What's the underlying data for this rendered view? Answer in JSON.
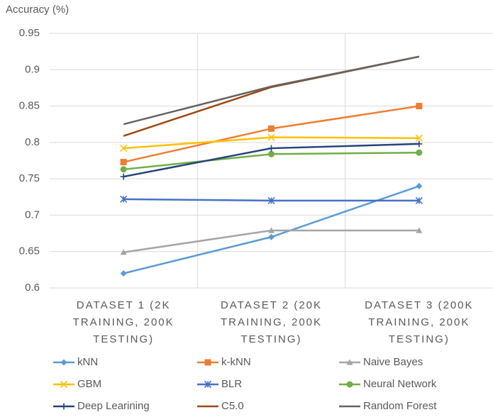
{
  "chart_data": {
    "type": "line",
    "ylabel": "Accuracy (%)",
    "categories": [
      "DATASET 1 (2K TRAINING, 200K TESTING)",
      "DATASET 2 (20K TRAINING, 200K TESTING)",
      "DATASET 3 (200K TRAINING, 200K TESTING)"
    ],
    "series": [
      {
        "name": "kNN",
        "color": "#5b9bd5",
        "marker": "diamond",
        "values": [
          0.62,
          0.67,
          0.74
        ]
      },
      {
        "name": "k-kNN",
        "color": "#ed7d31",
        "marker": "square",
        "values": [
          0.773,
          0.819,
          0.85
        ]
      },
      {
        "name": "Naive Bayes",
        "color": "#a5a5a5",
        "marker": "triangle",
        "values": [
          0.649,
          0.679,
          0.679
        ]
      },
      {
        "name": "GBM",
        "color": "#ffc000",
        "marker": "x",
        "values": [
          0.792,
          0.807,
          0.806
        ]
      },
      {
        "name": "BLR",
        "color": "#4472c4",
        "marker": "asterisk",
        "values": [
          0.722,
          0.72,
          0.72
        ]
      },
      {
        "name": "Neural Network",
        "color": "#70ad47",
        "marker": "circle",
        "values": [
          0.763,
          0.784,
          0.786
        ]
      },
      {
        "name": "Deep Learining",
        "color": "#264478",
        "marker": "plus",
        "values": [
          0.753,
          0.792,
          0.798
        ]
      },
      {
        "name": "C5.0",
        "color": "#9e480e",
        "marker": "none",
        "values": [
          0.809,
          0.876,
          0.918
        ]
      },
      {
        "name": "Random Forest",
        "color": "#636363",
        "marker": "none",
        "values": [
          0.825,
          0.877,
          0.918
        ]
      }
    ],
    "ylim": [
      0.6,
      0.95
    ],
    "yticks": [
      0.6,
      0.65,
      0.7,
      0.75,
      0.8,
      0.85,
      0.9,
      0.95
    ],
    "grid": true,
    "legend": "bottom"
  }
}
